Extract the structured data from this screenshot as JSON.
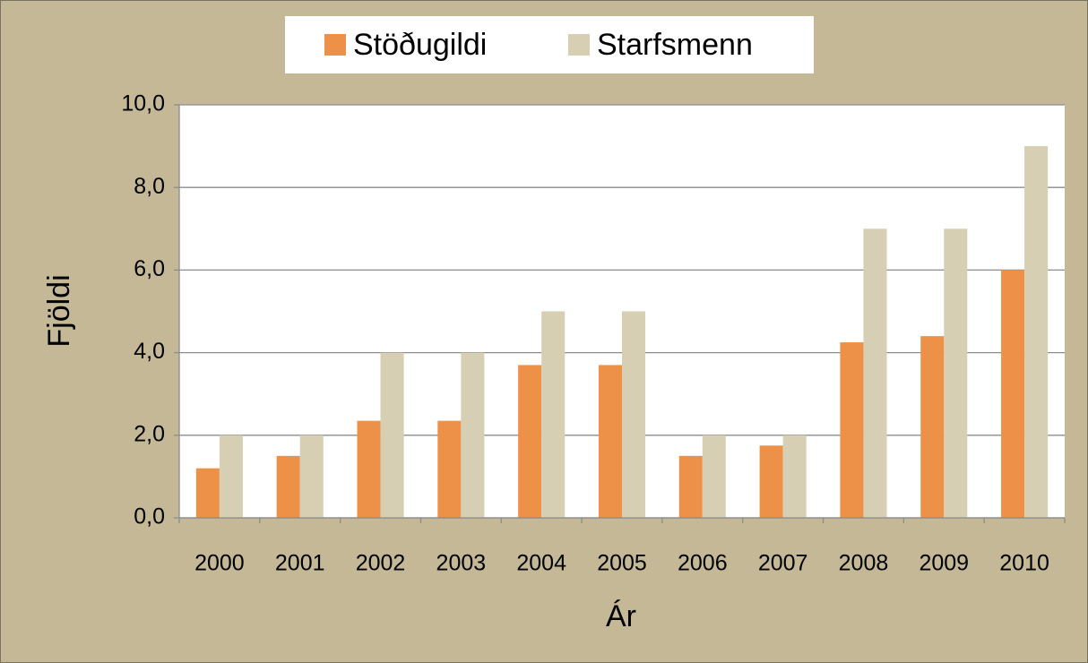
{
  "chart_data": {
    "type": "bar",
    "categories": [
      "2000",
      "2001",
      "2002",
      "2003",
      "2004",
      "2005",
      "2006",
      "2007",
      "2008",
      "2009",
      "2010"
    ],
    "series": [
      {
        "name": "Stöðugildi",
        "color": "#ed9149",
        "values": [
          1.2,
          1.5,
          2.35,
          2.35,
          3.7,
          3.7,
          1.5,
          1.75,
          4.25,
          4.4,
          6.0
        ]
      },
      {
        "name": "Starfsmenn",
        "color": "#d6cfb4",
        "values": [
          2,
          2,
          4,
          4,
          5,
          5,
          2,
          2,
          7,
          7,
          9
        ]
      }
    ],
    "ylabel": "Fjöldi",
    "xlabel": "Ár",
    "ylim": [
      0,
      10
    ],
    "yticks": [
      {
        "value": 0,
        "label": "0,0"
      },
      {
        "value": 2,
        "label": "2,0"
      },
      {
        "value": 4,
        "label": "4,0"
      },
      {
        "value": 6,
        "label": "6,0"
      },
      {
        "value": 8,
        "label": "8,0"
      },
      {
        "value": 10,
        "label": "10,0"
      }
    ],
    "grid": true,
    "legend": "top"
  }
}
